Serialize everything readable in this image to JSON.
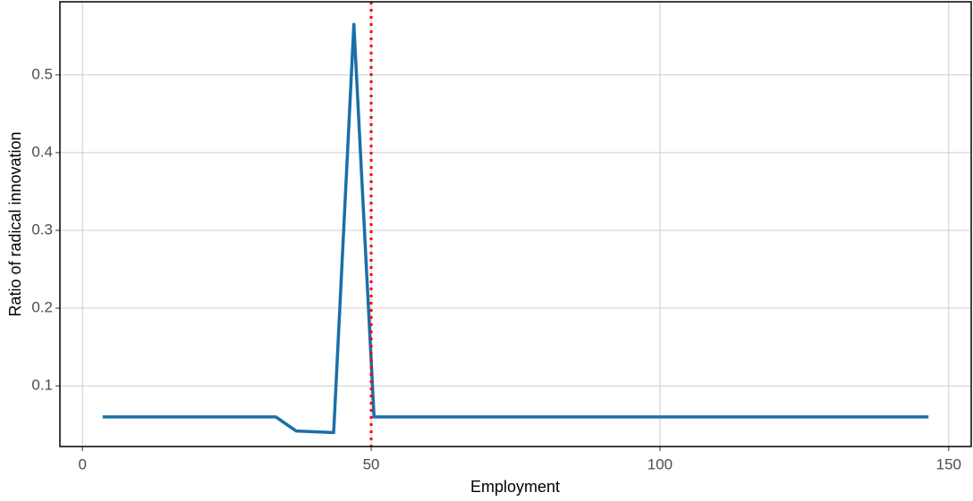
{
  "chart_data": {
    "type": "line",
    "x_label": "Employment",
    "y_label": "Ratio of radical innovation",
    "x": [
      3.5,
      33.5,
      37,
      43.5,
      47,
      50.5,
      146.5
    ],
    "series": [
      {
        "color": "#1a6faa",
        "values": [
          0.06,
          0.06,
          0.042,
          0.04,
          0.565,
          0.06,
          0.06
        ]
      }
    ],
    "xlim": [
      -3.9,
      153.9
    ],
    "xticks": [
      0,
      50,
      100,
      150
    ],
    "ylim": [
      0.022,
      0.594
    ],
    "yticks": [
      0.1,
      0.2,
      0.3,
      0.4,
      0.5
    ],
    "vline": {
      "value": 50,
      "color": "#ff0000"
    },
    "grid": true
  }
}
